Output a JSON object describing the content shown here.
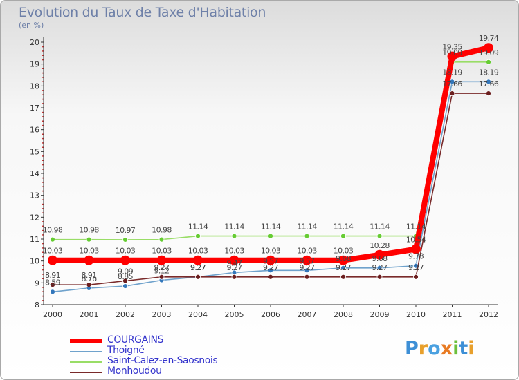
{
  "chart_data": {
    "type": "line",
    "title": "Evolution du Taux de Taxe d'Habitation",
    "subtitle": "(en %)",
    "x": [
      "2000",
      "2001",
      "2002",
      "2003",
      "2004",
      "2005",
      "2006",
      "2007",
      "2008",
      "2009",
      "2010",
      "2011",
      "2012"
    ],
    "ylim": [
      8,
      20
    ],
    "yticks": [
      "8",
      "9",
      "10",
      "11",
      "12",
      "13",
      "14",
      "15",
      "16",
      "17",
      "18",
      "19",
      "20"
    ],
    "grid": false,
    "legend_position": "bottom-left",
    "series": [
      {
        "name": "COURGAINS",
        "color": "#ff0000",
        "emphasis": true,
        "values": [
          10.03,
          10.03,
          10.03,
          10.03,
          10.03,
          10.03,
          10.03,
          10.03,
          10.03,
          10.28,
          10.54,
          19.35,
          19.74
        ],
        "labels": [
          "10.03",
          "10.03",
          "10.03",
          "10.03",
          "10.03",
          "10.03",
          "10.03",
          "10.03",
          "10.03",
          "10.28",
          "10.54",
          "19.35",
          "19.74"
        ]
      },
      {
        "name": "Thoigné",
        "color": "#6fa2cc",
        "marker": "#3377bb",
        "values": [
          8.59,
          8.76,
          8.85,
          9.12,
          9.27,
          9.47,
          9.57,
          9.57,
          9.68,
          9.68,
          9.78,
          18.19,
          18.19
        ],
        "labels": [
          "8.59",
          "8.76",
          "8.85",
          "9.12",
          "9.27",
          "9.47",
          "9.57",
          "9.57",
          "9.68",
          "9.68",
          "9.78",
          "18.19",
          "18.19"
        ]
      },
      {
        "name": "Saint-Calez-en-Saosnois",
        "color": "#99dd66",
        "marker": "#66cc33",
        "values": [
          10.98,
          10.98,
          10.97,
          10.98,
          11.14,
          11.14,
          11.14,
          11.14,
          11.14,
          11.14,
          11.14,
          19.09,
          19.09
        ],
        "labels": [
          "10.98",
          "10.98",
          "10.97",
          "10.98",
          "11.14",
          "11.14",
          "11.14",
          "11.14",
          "11.14",
          "11.14",
          "11.14",
          "19.09",
          "19.09"
        ]
      },
      {
        "name": "Monhoudou",
        "color": "#7a2a2a",
        "marker": "#6b1e1e",
        "values": [
          8.91,
          8.91,
          9.09,
          9.27,
          9.27,
          9.27,
          9.27,
          9.27,
          9.27,
          9.27,
          9.27,
          17.66,
          17.66
        ],
        "labels": [
          "8.91",
          "8.91",
          "9.09",
          "9.27",
          "9.27",
          "9.27",
          "9.27",
          "9.27",
          "9.27",
          "9.27",
          "9.27",
          "17.66",
          "17.66"
        ]
      }
    ]
  },
  "brand": {
    "letters": [
      {
        "char": "P",
        "color": "#3d8fd6"
      },
      {
        "char": "r",
        "color": "#e8a02c"
      },
      {
        "char": "o",
        "color": "#4aa0e0"
      },
      {
        "char": "x",
        "color": "#e87a22"
      },
      {
        "char": "i",
        "color": "#6cbf3c"
      },
      {
        "char": "t",
        "color": "#3d8fd6"
      },
      {
        "char": "i",
        "color": "#e8a02c"
      }
    ]
  }
}
